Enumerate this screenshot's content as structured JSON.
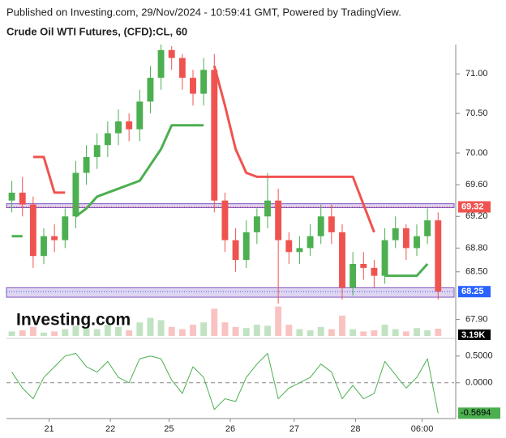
{
  "header": "Published on Investing.com, 29/Nov/2024 - 10:59:41 GMT, Powered by TradingView.",
  "logo": "Investing.com",
  "chart_data": {
    "type": "candlestick",
    "title": "Crude Oil WTI Futures, (CFD):CL, 60",
    "up_color": "#4caf50",
    "down_color": "#ef5350",
    "x": [
      2,
      6,
      10,
      14,
      18,
      22,
      26,
      30,
      34,
      38,
      42,
      46,
      50,
      54,
      58,
      62,
      66,
      70,
      74,
      78,
      82,
      86,
      90,
      94,
      98,
      102,
      106,
      110,
      114,
      118,
      122,
      126,
      130,
      134,
      138,
      142,
      146,
      150,
      154,
      158,
      162
    ],
    "open": [
      69.4,
      69.5,
      69.35,
      68.7,
      68.95,
      68.9,
      69.2,
      69.75,
      69.95,
      70.1,
      70.25,
      70.4,
      70.3,
      70.65,
      70.95,
      71.3,
      71.2,
      70.95,
      70.75,
      71.05,
      69.4,
      68.9,
      68.65,
      69.0,
      69.2,
      69.4,
      68.9,
      68.75,
      68.8,
      68.95,
      69.2,
      69.0,
      68.3,
      68.6,
      68.55,
      68.45,
      68.9,
      69.05,
      68.8,
      68.95,
      69.15
    ],
    "high": [
      69.65,
      69.7,
      69.45,
      69.05,
      69.1,
      69.3,
      69.9,
      70.1,
      70.25,
      70.4,
      70.55,
      70.5,
      70.8,
      71.1,
      71.37,
      71.35,
      71.25,
      71.05,
      71.2,
      71.25,
      69.5,
      69.05,
      69.15,
      69.3,
      69.75,
      69.55,
      69.0,
      68.95,
      69.1,
      69.35,
      69.35,
      69.1,
      68.75,
      68.75,
      68.65,
      69.05,
      69.2,
      69.1,
      69.1,
      69.3,
      69.25
    ],
    "low": [
      69.25,
      69.2,
      68.55,
      68.6,
      68.75,
      68.8,
      69.05,
      69.6,
      69.8,
      69.95,
      70.1,
      70.15,
      70.15,
      70.5,
      70.8,
      71.05,
      70.8,
      70.6,
      70.6,
      69.25,
      68.75,
      68.5,
      68.55,
      68.85,
      69.05,
      68.1,
      68.6,
      68.6,
      68.7,
      68.85,
      68.85,
      68.15,
      68.2,
      68.4,
      68.3,
      68.35,
      68.8,
      68.65,
      68.7,
      68.85,
      68.15
    ],
    "close": [
      69.5,
      69.35,
      68.7,
      68.95,
      68.9,
      69.2,
      69.75,
      69.95,
      70.1,
      70.25,
      70.4,
      70.3,
      70.65,
      70.95,
      71.3,
      71.2,
      70.95,
      70.75,
      71.05,
      69.4,
      68.9,
      68.65,
      69.0,
      69.2,
      69.4,
      68.9,
      68.75,
      68.8,
      68.95,
      69.2,
      69.0,
      68.3,
      68.6,
      68.55,
      68.45,
      68.9,
      69.05,
      68.8,
      68.95,
      69.15,
      68.25
    ],
    "supertrend_up": {
      "color": "#4caf50",
      "values": [
        68.95,
        68.95,
        null,
        null,
        null,
        null,
        69.2,
        69.3,
        69.45,
        69.5,
        69.55,
        69.6,
        69.65,
        69.85,
        70.05,
        70.35,
        70.35,
        70.35,
        70.35,
        null,
        null,
        null,
        null,
        null,
        null,
        null,
        null,
        null,
        null,
        null,
        null,
        null,
        null,
        null,
        null,
        68.45,
        68.45,
        68.45,
        68.45,
        68.6,
        null
      ]
    },
    "supertrend_down": {
      "color": "#f05350",
      "values": [
        null,
        null,
        69.95,
        69.95,
        69.5,
        69.5,
        null,
        null,
        null,
        null,
        null,
        null,
        null,
        null,
        null,
        null,
        null,
        null,
        null,
        71.1,
        70.6,
        70.05,
        69.75,
        69.7,
        69.7,
        69.7,
        69.7,
        69.7,
        69.7,
        69.7,
        69.7,
        69.7,
        69.7,
        69.35,
        69.0,
        null,
        null,
        null,
        null,
        null,
        69.32
      ]
    },
    "zones": [
      {
        "from": 69.31,
        "to": 69.36
      },
      {
        "from": 68.18,
        "to": 68.3
      }
    ],
    "zone_color": "#7e57c2",
    "price_tags": [
      {
        "value": 69.32,
        "label": "69.32",
        "color": "#f05350"
      },
      {
        "value": 68.25,
        "label": "68.25",
        "color": "#2962ff"
      }
    ],
    "xlim": [
      0,
      168
    ],
    "xticks": [
      {
        "value": 16,
        "label": "21"
      },
      {
        "value": 39,
        "label": "22"
      },
      {
        "value": 61,
        "label": "25"
      },
      {
        "value": 84,
        "label": "26"
      },
      {
        "value": 108,
        "label": "27"
      },
      {
        "value": 131,
        "label": "28"
      },
      {
        "value": 156,
        "label": "06:00"
      }
    ],
    "ylim": [
      67.69,
      71.37
    ],
    "yticks": [
      {
        "value": 71,
        "label": "71.00"
      },
      {
        "value": 70.5,
        "label": "70.50"
      },
      {
        "value": 70,
        "label": "70.00"
      },
      {
        "value": 69.6,
        "label": "69.60"
      },
      {
        "value": 69.2,
        "label": "69.20"
      },
      {
        "value": 68.8,
        "label": "68.80"
      },
      {
        "value": 68.5,
        "label": "68.50"
      },
      {
        "value": 67.9,
        "label": "67.90"
      }
    ],
    "volume": {
      "values": [
        2000,
        2500,
        4000,
        1500,
        2000,
        3000,
        4500,
        3500,
        3000,
        5000,
        4000,
        2500,
        6000,
        8000,
        7000,
        4000,
        3000,
        5000,
        6000,
        12000,
        6000,
        4000,
        3500,
        5000,
        4500,
        13000,
        5000,
        3000,
        2500,
        4000,
        3000,
        9000,
        3000,
        2000,
        2500,
        5000,
        3000,
        2000,
        3500,
        2500,
        3190
      ],
      "ylim": [
        0,
        15000
      ],
      "last_label": "3.19K"
    },
    "oscillator": {
      "color": "#4caf50",
      "values": [
        0.2,
        -0.1,
        -0.3,
        0.1,
        0.3,
        0.5,
        0.55,
        0.3,
        0.2,
        0.4,
        0.1,
        0.0,
        0.45,
        0.5,
        0.45,
        0.05,
        -0.2,
        0.3,
        0.1,
        -0.5,
        -0.3,
        -0.35,
        0.1,
        0.35,
        0.55,
        -0.3,
        -0.1,
        0.0,
        0.1,
        0.35,
        0.2,
        -0.3,
        -0.05,
        -0.3,
        -0.2,
        0.4,
        0.15,
        -0.1,
        0.1,
        0.45,
        -0.5694
      ],
      "last_label": "-0.5694",
      "ylim": [
        -0.64,
        0.8
      ],
      "yticks": [
        {
          "value": 0.5,
          "label": "0.5000"
        },
        {
          "value": 0,
          "label": "0.0000"
        }
      ]
    }
  }
}
